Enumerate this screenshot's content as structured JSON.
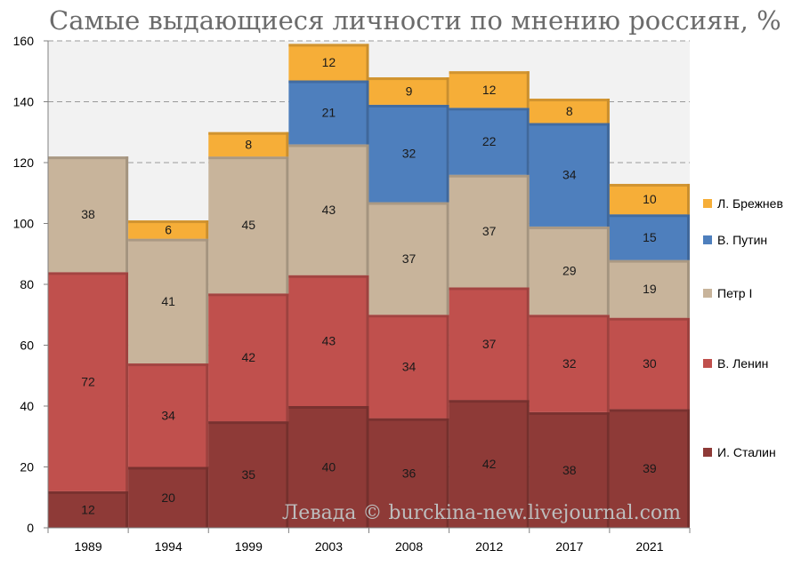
{
  "chart_data": {
    "type": "bar",
    "stacked": true,
    "title": "Самые выдающиеся личности по мнению россиян, %",
    "categories": [
      "1989",
      "1994",
      "1999",
      "2003",
      "2008",
      "2012",
      "2017",
      "2021"
    ],
    "ylim": [
      0,
      160
    ],
    "yticks": [
      0,
      20,
      40,
      60,
      80,
      100,
      120,
      140,
      160
    ],
    "grid": true,
    "legend_position": "right",
    "series": [
      {
        "name": "И. Сталин",
        "color": "#8e3a37",
        "values": [
          12,
          20,
          35,
          40,
          36,
          42,
          38,
          39
        ]
      },
      {
        "name": "В. Ленин",
        "color": "#c0504d",
        "values": [
          72,
          34,
          42,
          43,
          34,
          37,
          32,
          30
        ]
      },
      {
        "name": "Петр I",
        "color": "#c8b49b",
        "values": [
          38,
          41,
          45,
          43,
          37,
          37,
          29,
          19
        ]
      },
      {
        "name": "В. Путин",
        "color": "#4e7fbd",
        "values": [
          null,
          null,
          null,
          21,
          32,
          22,
          34,
          15
        ]
      },
      {
        "name": "Л. Брежнев",
        "color": "#f6ae38",
        "values": [
          null,
          6,
          8,
          12,
          9,
          12,
          8,
          10
        ]
      }
    ],
    "legend_order": [
      "Л. Брежнев",
      "В. Путин",
      "Петр I",
      "В. Ленин",
      "И. Сталин"
    ]
  },
  "watermark": "Левада © burckina-new.livejournal.com"
}
